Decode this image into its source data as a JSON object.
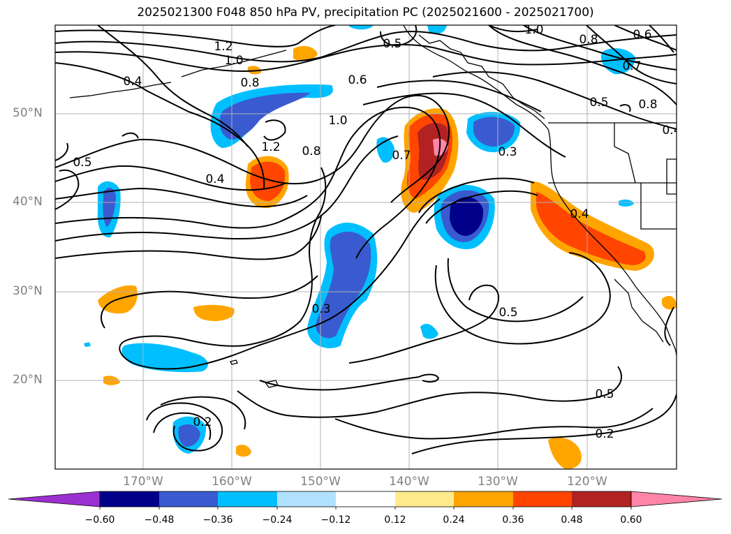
{
  "title": "2025021300 F048 850 hPa PV, precipitation PC (2025021600 - 2025021700)",
  "lat_labels": [
    "50°N",
    "40°N",
    "30°N",
    "20°N"
  ],
  "lon_labels": [
    "170°W",
    "160°W",
    "150°W",
    "140°W",
    "130°W",
    "120°W"
  ],
  "contour_labels": [
    "1.2",
    "1.0",
    "0.4",
    "0.8",
    "0.5",
    "0.6",
    "1.0",
    "0.8",
    "0.6",
    "0.7",
    "0.5",
    "0.8",
    "0.4",
    "0.5",
    "1.0",
    "1.2",
    "0.8",
    "0.7",
    "0.3",
    "0.4",
    "0.3",
    "0.5",
    "0.5",
    "0.2",
    "0.2",
    "0.4"
  ],
  "colorbar": {
    "ticks": [
      "−0.60",
      "−0.48",
      "−0.36",
      "−0.24",
      "−0.12",
      "0.12",
      "0.24",
      "0.36",
      "0.48",
      "0.60"
    ],
    "colors": [
      "#9b30d0",
      "#00008b",
      "#3a5bcf",
      "#00bfff",
      "#b0e2ff",
      "#ffffff",
      "#ffeb8c",
      "#ffa500",
      "#ff4500",
      "#b22222",
      "#ff85a8"
    ]
  },
  "map_style": {
    "land_border": "#000000",
    "grid_color": "#b0b0b0",
    "contour_color": "#000000"
  }
}
